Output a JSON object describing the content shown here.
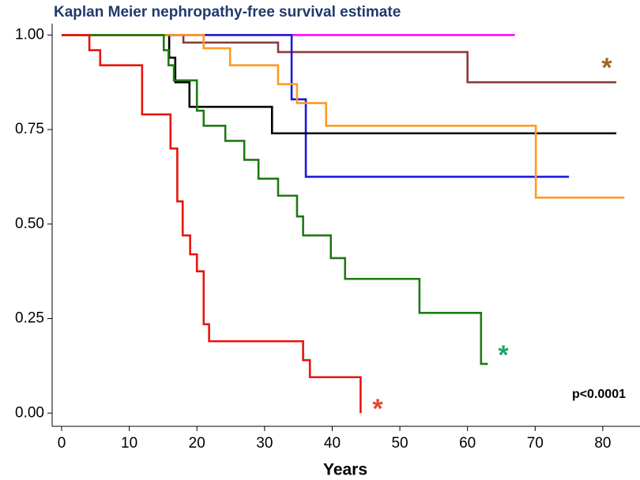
{
  "chart_data": {
    "type": "step",
    "title": "Kaplan Meier nephropathy-free survival estimate",
    "x_label": "Years",
    "annotations": [
      "*",
      "*",
      "*",
      "p<0.0001"
    ],
    "annotation_colors": [
      "#9a6a1c",
      "#1aa865",
      "#e5472a",
      "#000000"
    ],
    "xlim": [
      -1.4,
      85.5
    ],
    "ylim": [
      -0.035,
      1.03
    ],
    "xticks": [
      0,
      10,
      20,
      30,
      40,
      50,
      60,
      70,
      80
    ],
    "yticks": [
      {
        "value": 0,
        "label": "0.00"
      },
      {
        "value": 0.25,
        "label": "0.25"
      },
      {
        "value": 0.5,
        "label": "0.50"
      },
      {
        "value": 0.75,
        "label": "0.75"
      },
      {
        "value": 1,
        "label": "1.00"
      }
    ],
    "series": [
      {
        "color": "#ff00ff",
        "x": [
          0,
          67
        ],
        "values": [
          1,
          1
        ]
      },
      {
        "color": "#8b3a3a",
        "x": [
          0,
          18,
          32,
          60,
          82
        ],
        "values": [
          1,
          0.98,
          0.955,
          0.875,
          0.875
        ]
      },
      {
        "color": "#1a1ad6",
        "x": [
          0,
          34,
          36.1,
          75
        ],
        "values": [
          1,
          0.83,
          0.625,
          0.625
        ]
      },
      {
        "color": "#000000",
        "x": [
          0,
          15.9,
          16.8,
          18.9,
          31.1,
          82
        ],
        "values": [
          1,
          0.94,
          0.875,
          0.81,
          0.74,
          0.74
        ]
      },
      {
        "color": "#ff9a1f",
        "x": [
          0,
          21,
          24.9,
          32,
          34.8,
          39.1,
          70.1,
          83.2
        ],
        "values": [
          1,
          0.965,
          0.92,
          0.87,
          0.82,
          0.76,
          0.57,
          0.57
        ]
      },
      {
        "color": "#1e7a12",
        "x": [
          0,
          15.1,
          15.8,
          16.6,
          20,
          21,
          24.2,
          27,
          29.1,
          32,
          34.8,
          35.7,
          39.8,
          41.9,
          52.9,
          62,
          63
        ],
        "values": [
          1,
          0.96,
          0.92,
          0.88,
          0.8,
          0.76,
          0.72,
          0.67,
          0.62,
          0.575,
          0.52,
          0.47,
          0.41,
          0.355,
          0.265,
          0.13,
          0.13
        ]
      },
      {
        "color": "#e8140f",
        "x": [
          0,
          4.1,
          5.7,
          11.9,
          16.1,
          17.1,
          17.9,
          19,
          20,
          21,
          21.8,
          35.7,
          36.7,
          44.2
        ],
        "values": [
          1,
          0.96,
          0.92,
          0.79,
          0.7,
          0.56,
          0.47,
          0.42,
          0.375,
          0.235,
          0.19,
          0.14,
          0.095,
          0
        ]
      }
    ]
  }
}
